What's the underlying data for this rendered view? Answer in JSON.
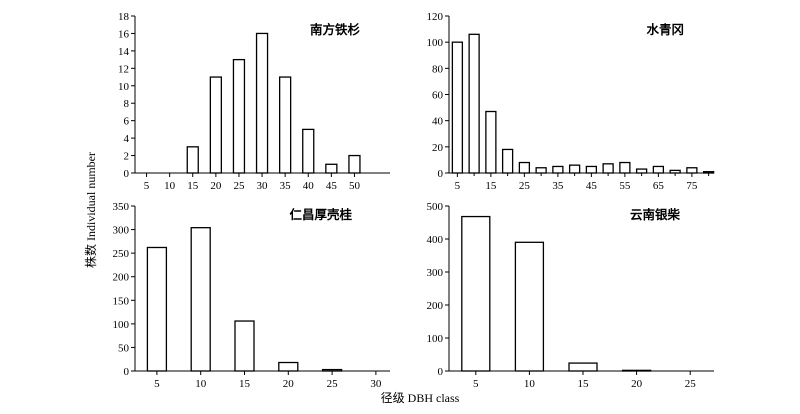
{
  "figure": {
    "ylabel": "株数 Individual number",
    "xlabel": "径级 DBH class"
  },
  "chart_data": [
    {
      "type": "bar",
      "title": "南方铁杉",
      "x": [
        5,
        10,
        15,
        20,
        25,
        30,
        35,
        40,
        45,
        50
      ],
      "values": [
        0,
        0,
        3,
        11,
        13,
        16,
        11,
        5,
        1,
        2
      ],
      "xticks": [
        "5",
        "10",
        "15",
        "20",
        "25",
        "30",
        "35",
        "40",
        "45",
        "50"
      ],
      "ylim": [
        0,
        18
      ],
      "yticks": [
        "0",
        "2",
        "4",
        "6",
        "8",
        "10",
        "12",
        "14",
        "16",
        "18"
      ]
    },
    {
      "type": "bar",
      "title": "水青冈",
      "x": [
        5,
        10,
        15,
        20,
        25,
        30,
        35,
        40,
        45,
        50,
        55,
        60,
        65,
        70,
        75,
        80
      ],
      "values": [
        100,
        106,
        47,
        18,
        8,
        4,
        5,
        6,
        5,
        7,
        8,
        3,
        5,
        2,
        4,
        1
      ],
      "xticks": [
        "5",
        "15",
        "25",
        "35",
        "45",
        "55",
        "65",
        "75"
      ],
      "ylim": [
        0,
        120
      ],
      "yticks": [
        "0",
        "20",
        "40",
        "60",
        "80",
        "100",
        "120"
      ]
    },
    {
      "type": "bar",
      "title": "仁昌厚壳桂",
      "x": [
        5,
        10,
        15,
        20,
        25,
        30
      ],
      "values": [
        262,
        304,
        106,
        18,
        3,
        0
      ],
      "xticks": [
        "5",
        "10",
        "15",
        "20",
        "25",
        "30"
      ],
      "ylim": [
        0,
        350
      ],
      "yticks": [
        "0",
        "50",
        "100",
        "150",
        "200",
        "250",
        "300",
        "350"
      ]
    },
    {
      "type": "bar",
      "title": "云南银柴",
      "x": [
        5,
        10,
        15,
        20,
        25
      ],
      "values": [
        468,
        390,
        24,
        2,
        0
      ],
      "xticks": [
        "5",
        "10",
        "15",
        "20",
        "25"
      ],
      "ylim": [
        0,
        500
      ],
      "yticks": [
        "0",
        "100",
        "200",
        "300",
        "400",
        "500"
      ]
    }
  ]
}
